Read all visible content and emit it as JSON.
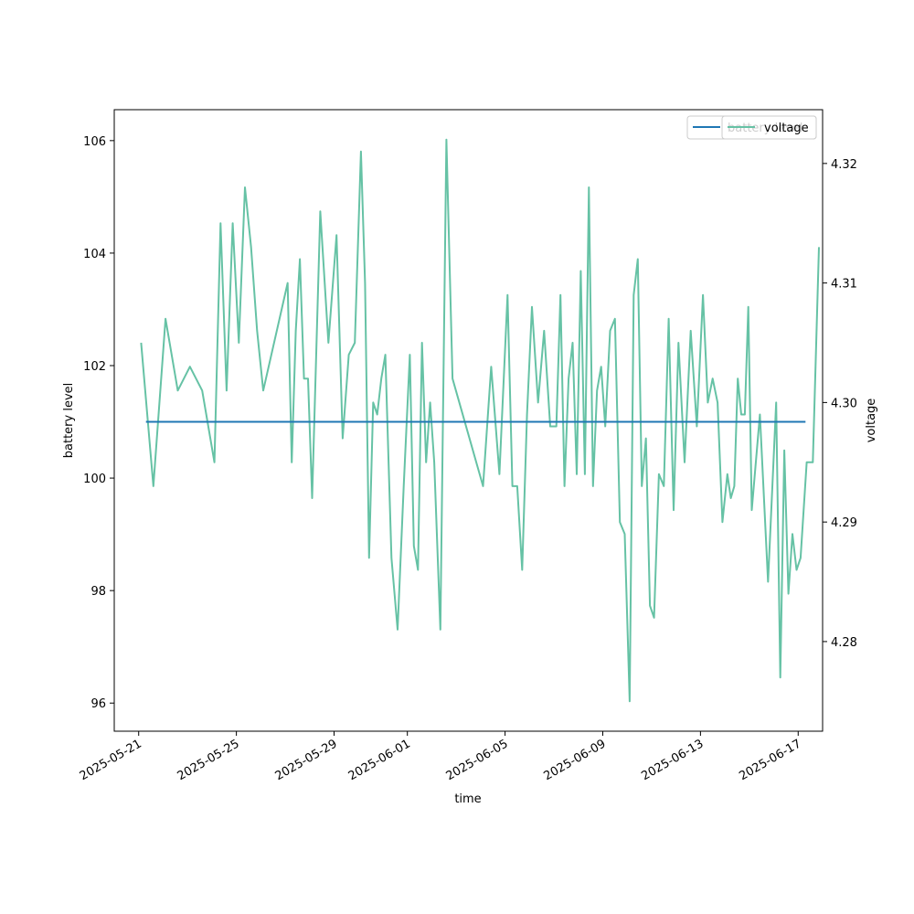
{
  "chart_data": {
    "type": "line",
    "xlabel": "time",
    "ylabel_left": "battery level",
    "ylabel_right": "voltage",
    "grid": false,
    "legend_placement": "top-right",
    "legends": [
      {
        "axis": "left",
        "entries": [
          "battery level"
        ]
      },
      {
        "axis": "right",
        "entries": [
          "voltage"
        ]
      }
    ],
    "x_ticks": [
      "2025-05-21",
      "2025-05-25",
      "2025-05-29",
      "2025-06-01",
      "2025-06-05",
      "2025-06-09",
      "2025-06-13",
      "2025-06-17"
    ],
    "xlim": [
      "2025-05-20",
      "2025-06-18"
    ],
    "left_axis": {
      "ylim": [
        95.5,
        106.55
      ],
      "ticks": [
        96,
        98,
        100,
        102,
        104,
        106
      ]
    },
    "right_axis": {
      "ylim": [
        4.2725,
        4.3245
      ],
      "ticks": [
        "4.28",
        "4.29",
        "4.30",
        "4.31",
        "4.32"
      ]
    },
    "series": [
      {
        "name": "battery level",
        "axis": "left",
        "color": "#1f77b4",
        "x": [
          "2025-05-21",
          "2025-06-17"
        ],
        "values": [
          101,
          101
        ]
      },
      {
        "name": "voltage",
        "axis": "right",
        "color": "#66c2a5",
        "points": [
          [
            "2025-05-21",
            4.305
          ],
          [
            "2025-05-21",
            4.293
          ],
          [
            "2025-05-22",
            4.307
          ],
          [
            "2025-05-22",
            4.301
          ],
          [
            "2025-05-23",
            4.303
          ],
          [
            "2025-05-23",
            4.301
          ],
          [
            "2025-05-24",
            4.295
          ],
          [
            "2025-05-24",
            4.315
          ],
          [
            "2025-05-24",
            4.301
          ],
          [
            "2025-05-24",
            4.315
          ],
          [
            "2025-05-25",
            4.305
          ],
          [
            "2025-05-25",
            4.318
          ],
          [
            "2025-05-25",
            4.313
          ],
          [
            "2025-05-25",
            4.306
          ],
          [
            "2025-05-26",
            4.301
          ],
          [
            "2025-05-27",
            4.31
          ],
          [
            "2025-05-27",
            4.295
          ],
          [
            "2025-05-27",
            4.306
          ],
          [
            "2025-05-27",
            4.312
          ],
          [
            "2025-05-27",
            4.302
          ],
          [
            "2025-05-27",
            4.302
          ],
          [
            "2025-05-28",
            4.292
          ],
          [
            "2025-05-28",
            4.316
          ],
          [
            "2025-05-28",
            4.305
          ],
          [
            "2025-05-29",
            4.314
          ],
          [
            "2025-05-29",
            4.297
          ],
          [
            "2025-05-29",
            4.304
          ],
          [
            "2025-05-29",
            4.305
          ],
          [
            "2025-05-30",
            4.321
          ],
          [
            "2025-05-30",
            4.31
          ],
          [
            "2025-05-30",
            4.287
          ],
          [
            "2025-05-30",
            4.3
          ],
          [
            "2025-05-30",
            4.299
          ],
          [
            "2025-05-30",
            4.302
          ],
          [
            "2025-05-31",
            4.304
          ],
          [
            "2025-05-31",
            4.287
          ],
          [
            "2025-05-31",
            4.281
          ],
          [
            "2025-05-31",
            4.293
          ],
          [
            "2025-06-01",
            4.304
          ],
          [
            "2025-06-01",
            4.288
          ],
          [
            "2025-06-01",
            4.286
          ],
          [
            "2025-06-01",
            4.305
          ],
          [
            "2025-06-01",
            4.295
          ],
          [
            "2025-06-01",
            4.3
          ],
          [
            "2025-06-02",
            4.295
          ],
          [
            "2025-06-02",
            4.281
          ],
          [
            "2025-06-02",
            4.322
          ],
          [
            "2025-06-02",
            4.302
          ],
          [
            "2025-06-04",
            4.293
          ],
          [
            "2025-06-04",
            4.303
          ],
          [
            "2025-06-04",
            4.294
          ],
          [
            "2025-06-05",
            4.309
          ],
          [
            "2025-06-05",
            4.293
          ],
          [
            "2025-06-05",
            4.293
          ],
          [
            "2025-06-05",
            4.286
          ],
          [
            "2025-06-05",
            4.299
          ],
          [
            "2025-06-06",
            4.308
          ],
          [
            "2025-06-06",
            4.3
          ],
          [
            "2025-06-06",
            4.306
          ],
          [
            "2025-06-06",
            4.298
          ],
          [
            "2025-06-07",
            4.298
          ],
          [
            "2025-06-07",
            4.309
          ],
          [
            "2025-06-07",
            4.293
          ],
          [
            "2025-06-07",
            4.302
          ],
          [
            "2025-06-07",
            4.305
          ],
          [
            "2025-06-07",
            4.294
          ],
          [
            "2025-06-08",
            4.311
          ],
          [
            "2025-06-08",
            4.294
          ],
          [
            "2025-06-08",
            4.318
          ],
          [
            "2025-06-08",
            4.293
          ],
          [
            "2025-06-08",
            4.301
          ],
          [
            "2025-06-08",
            4.303
          ],
          [
            "2025-06-09",
            4.298
          ],
          [
            "2025-06-09",
            4.306
          ],
          [
            "2025-06-09",
            4.307
          ],
          [
            "2025-06-09",
            4.29
          ],
          [
            "2025-06-09",
            4.289
          ],
          [
            "2025-06-10",
            4.275
          ],
          [
            "2025-06-10",
            4.309
          ],
          [
            "2025-06-10",
            4.312
          ],
          [
            "2025-06-10",
            4.293
          ],
          [
            "2025-06-10",
            4.297
          ],
          [
            "2025-06-10",
            4.283
          ],
          [
            "2025-06-11",
            4.282
          ],
          [
            "2025-06-11",
            4.294
          ],
          [
            "2025-06-11",
            4.293
          ],
          [
            "2025-06-11",
            4.307
          ],
          [
            "2025-06-11",
            4.291
          ],
          [
            "2025-06-12",
            4.305
          ],
          [
            "2025-06-12",
            4.295
          ],
          [
            "2025-06-12",
            4.306
          ],
          [
            "2025-06-12",
            4.298
          ],
          [
            "2025-06-13",
            4.309
          ],
          [
            "2025-06-13",
            4.3
          ],
          [
            "2025-06-13",
            4.302
          ],
          [
            "2025-06-13",
            4.3
          ],
          [
            "2025-06-13",
            4.29
          ],
          [
            "2025-06-14",
            4.294
          ],
          [
            "2025-06-14",
            4.292
          ],
          [
            "2025-06-14",
            4.293
          ],
          [
            "2025-06-14",
            4.302
          ],
          [
            "2025-06-14",
            4.299
          ],
          [
            "2025-06-14",
            4.299
          ],
          [
            "2025-06-14",
            4.308
          ],
          [
            "2025-06-15",
            4.291
          ],
          [
            "2025-06-15",
            4.299
          ],
          [
            "2025-06-15",
            4.285
          ],
          [
            "2025-06-16",
            4.3
          ],
          [
            "2025-06-16",
            4.277
          ],
          [
            "2025-06-16",
            4.296
          ],
          [
            "2025-06-16",
            4.284
          ],
          [
            "2025-06-16",
            4.289
          ],
          [
            "2025-06-16",
            4.286
          ],
          [
            "2025-06-17",
            4.287
          ],
          [
            "2025-06-17",
            4.295
          ],
          [
            "2025-06-17",
            4.295
          ],
          [
            "2025-06-17",
            4.313
          ]
        ]
      }
    ]
  }
}
